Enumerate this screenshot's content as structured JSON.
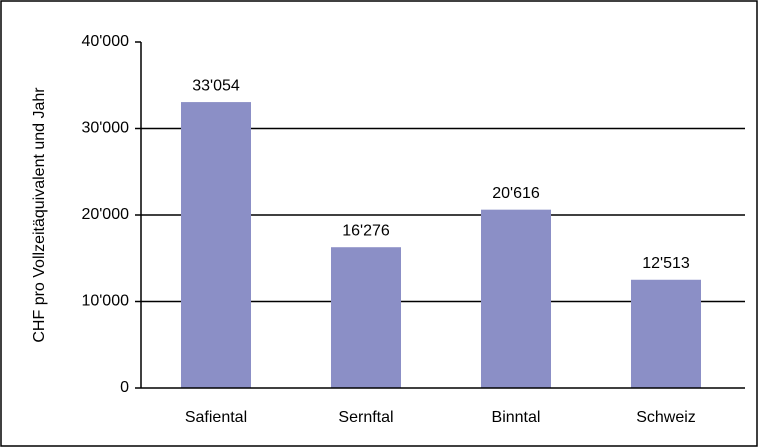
{
  "chart_data": {
    "type": "bar",
    "y_axis_label": "CHF pro Vollzeitäquivalent und Jahr",
    "categories": [
      "Safiental",
      "Sernftal",
      "Binntal",
      "Schweiz"
    ],
    "values": [
      33054,
      16276,
      20616,
      12513
    ],
    "value_labels": [
      "33'054",
      "16'276",
      "20'616",
      "12'513"
    ],
    "color": "#8b8fc6",
    "ylim": [
      0,
      40000
    ],
    "yticks": [
      0,
      {
        "value": 10000,
        "label": "10'000"
      },
      {
        "value": 20000,
        "label": "20'000"
      },
      {
        "value": 30000,
        "label": "30'000"
      },
      {
        "value": 40000,
        "label": "40'000"
      }
    ],
    "grid": true
  }
}
